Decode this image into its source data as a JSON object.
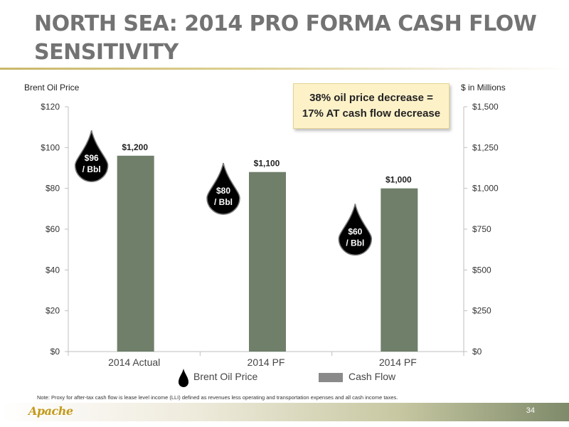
{
  "slide": {
    "title": "NORTH SEA: 2014 PRO FORMA CASH FLOW SENSITIVITY",
    "callout_line1": "38% oil price decrease  =",
    "callout_line2": "17% AT cash flow decrease",
    "footnote": "Note: Proxy for after-tax cash flow is lease level income (LLI) defined as revenues less operating and transportation expenses and all cash income taxes.",
    "logo": "Apache",
    "page_number": "34"
  },
  "colors": {
    "title": "#737373",
    "bar": "#6f7f6a",
    "drop": "#000000",
    "callout_bg": "#fdf1c8"
  },
  "chart_data": {
    "type": "bar",
    "categories": [
      "2014 Actual",
      "2014 PF",
      "2014 PF"
    ],
    "series": [
      {
        "name": "Cash Flow",
        "values": [
          1200,
          1100,
          1000
        ],
        "axis": "right",
        "data_labels": [
          "$1,200",
          "$1,100",
          "$1,000"
        ]
      },
      {
        "name": "Brent Oil Price",
        "values": [
          96,
          80,
          60
        ],
        "axis": "left",
        "marker": "oil-drop",
        "data_labels": [
          "$96\n/ Bbl",
          "$80\n/ Bbl",
          "$60\n/ Bbl"
        ]
      }
    ],
    "ylabel_left": "Brent Oil Price",
    "ylabel_right": "$ in Millions",
    "ylim_left": [
      0,
      120
    ],
    "ylim_right": [
      0,
      1500
    ],
    "yticks_left": [
      "$0",
      "$20",
      "$40",
      "$60",
      "$80",
      "$100",
      "$120"
    ],
    "yticks_right": [
      "$0",
      "$250",
      "$500",
      "$750",
      "$1,000",
      "$1,250",
      "$1,500"
    ],
    "legend_position": "bottom",
    "grid": false
  }
}
